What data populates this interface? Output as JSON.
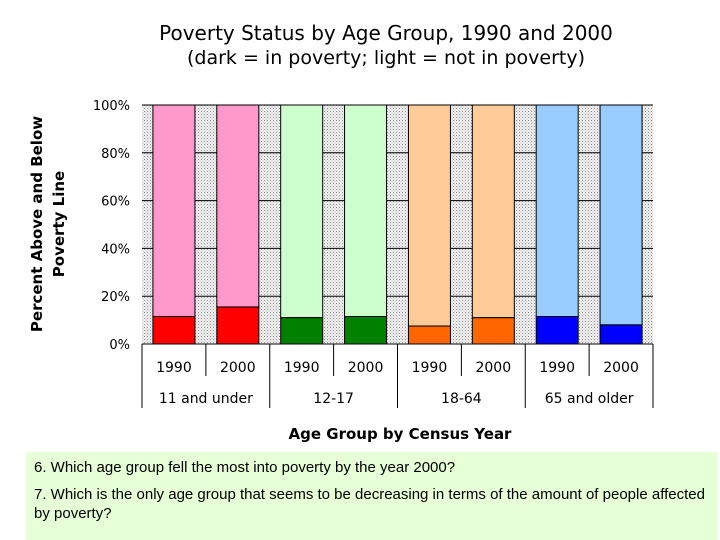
{
  "chart_data": {
    "type": "bar",
    "stacked": true,
    "title": "Poverty Status by Age Group, 1990 and 2000",
    "subtitle": "(dark = in poverty; light = not in poverty)",
    "ylabel_line1": "Percent Above and Below",
    "ylabel_line2": "Poverty Line",
    "xlabel": "Age Group by Census Year",
    "ylim": [
      0,
      100
    ],
    "yticks": [
      "0%",
      "20%",
      "40%",
      "60%",
      "80%",
      "100%"
    ],
    "groups": [
      "11 and under",
      "12-17",
      "18-64",
      "65 and older"
    ],
    "categories": [
      "1990",
      "2000",
      "1990",
      "2000",
      "1990",
      "2000",
      "1990",
      "2000"
    ],
    "series": [
      {
        "name": "in poverty",
        "values": [
          11.5,
          15.5,
          11,
          11.5,
          7.5,
          11,
          11.5,
          8
        ]
      },
      {
        "name": "not in poverty",
        "values": [
          88.5,
          84.5,
          89,
          88.5,
          92.5,
          89,
          88.5,
          92
        ]
      }
    ],
    "colors_dark": [
      "#ff0000",
      "#ff0000",
      "#008000",
      "#008000",
      "#ff6600",
      "#ff6600",
      "#0000ff",
      "#0000ff"
    ],
    "colors_light": [
      "#ff99cc",
      "#ff99cc",
      "#ccffcc",
      "#ccffcc",
      "#ffcc99",
      "#ffcc99",
      "#99ccff",
      "#99ccff"
    ]
  },
  "questions": {
    "q6": "6. Which age group fell the most into poverty by the year 2000?",
    "q7": "7. Which is the only age group that seems to be decreasing in terms of the amount of people affected by poverty?"
  }
}
